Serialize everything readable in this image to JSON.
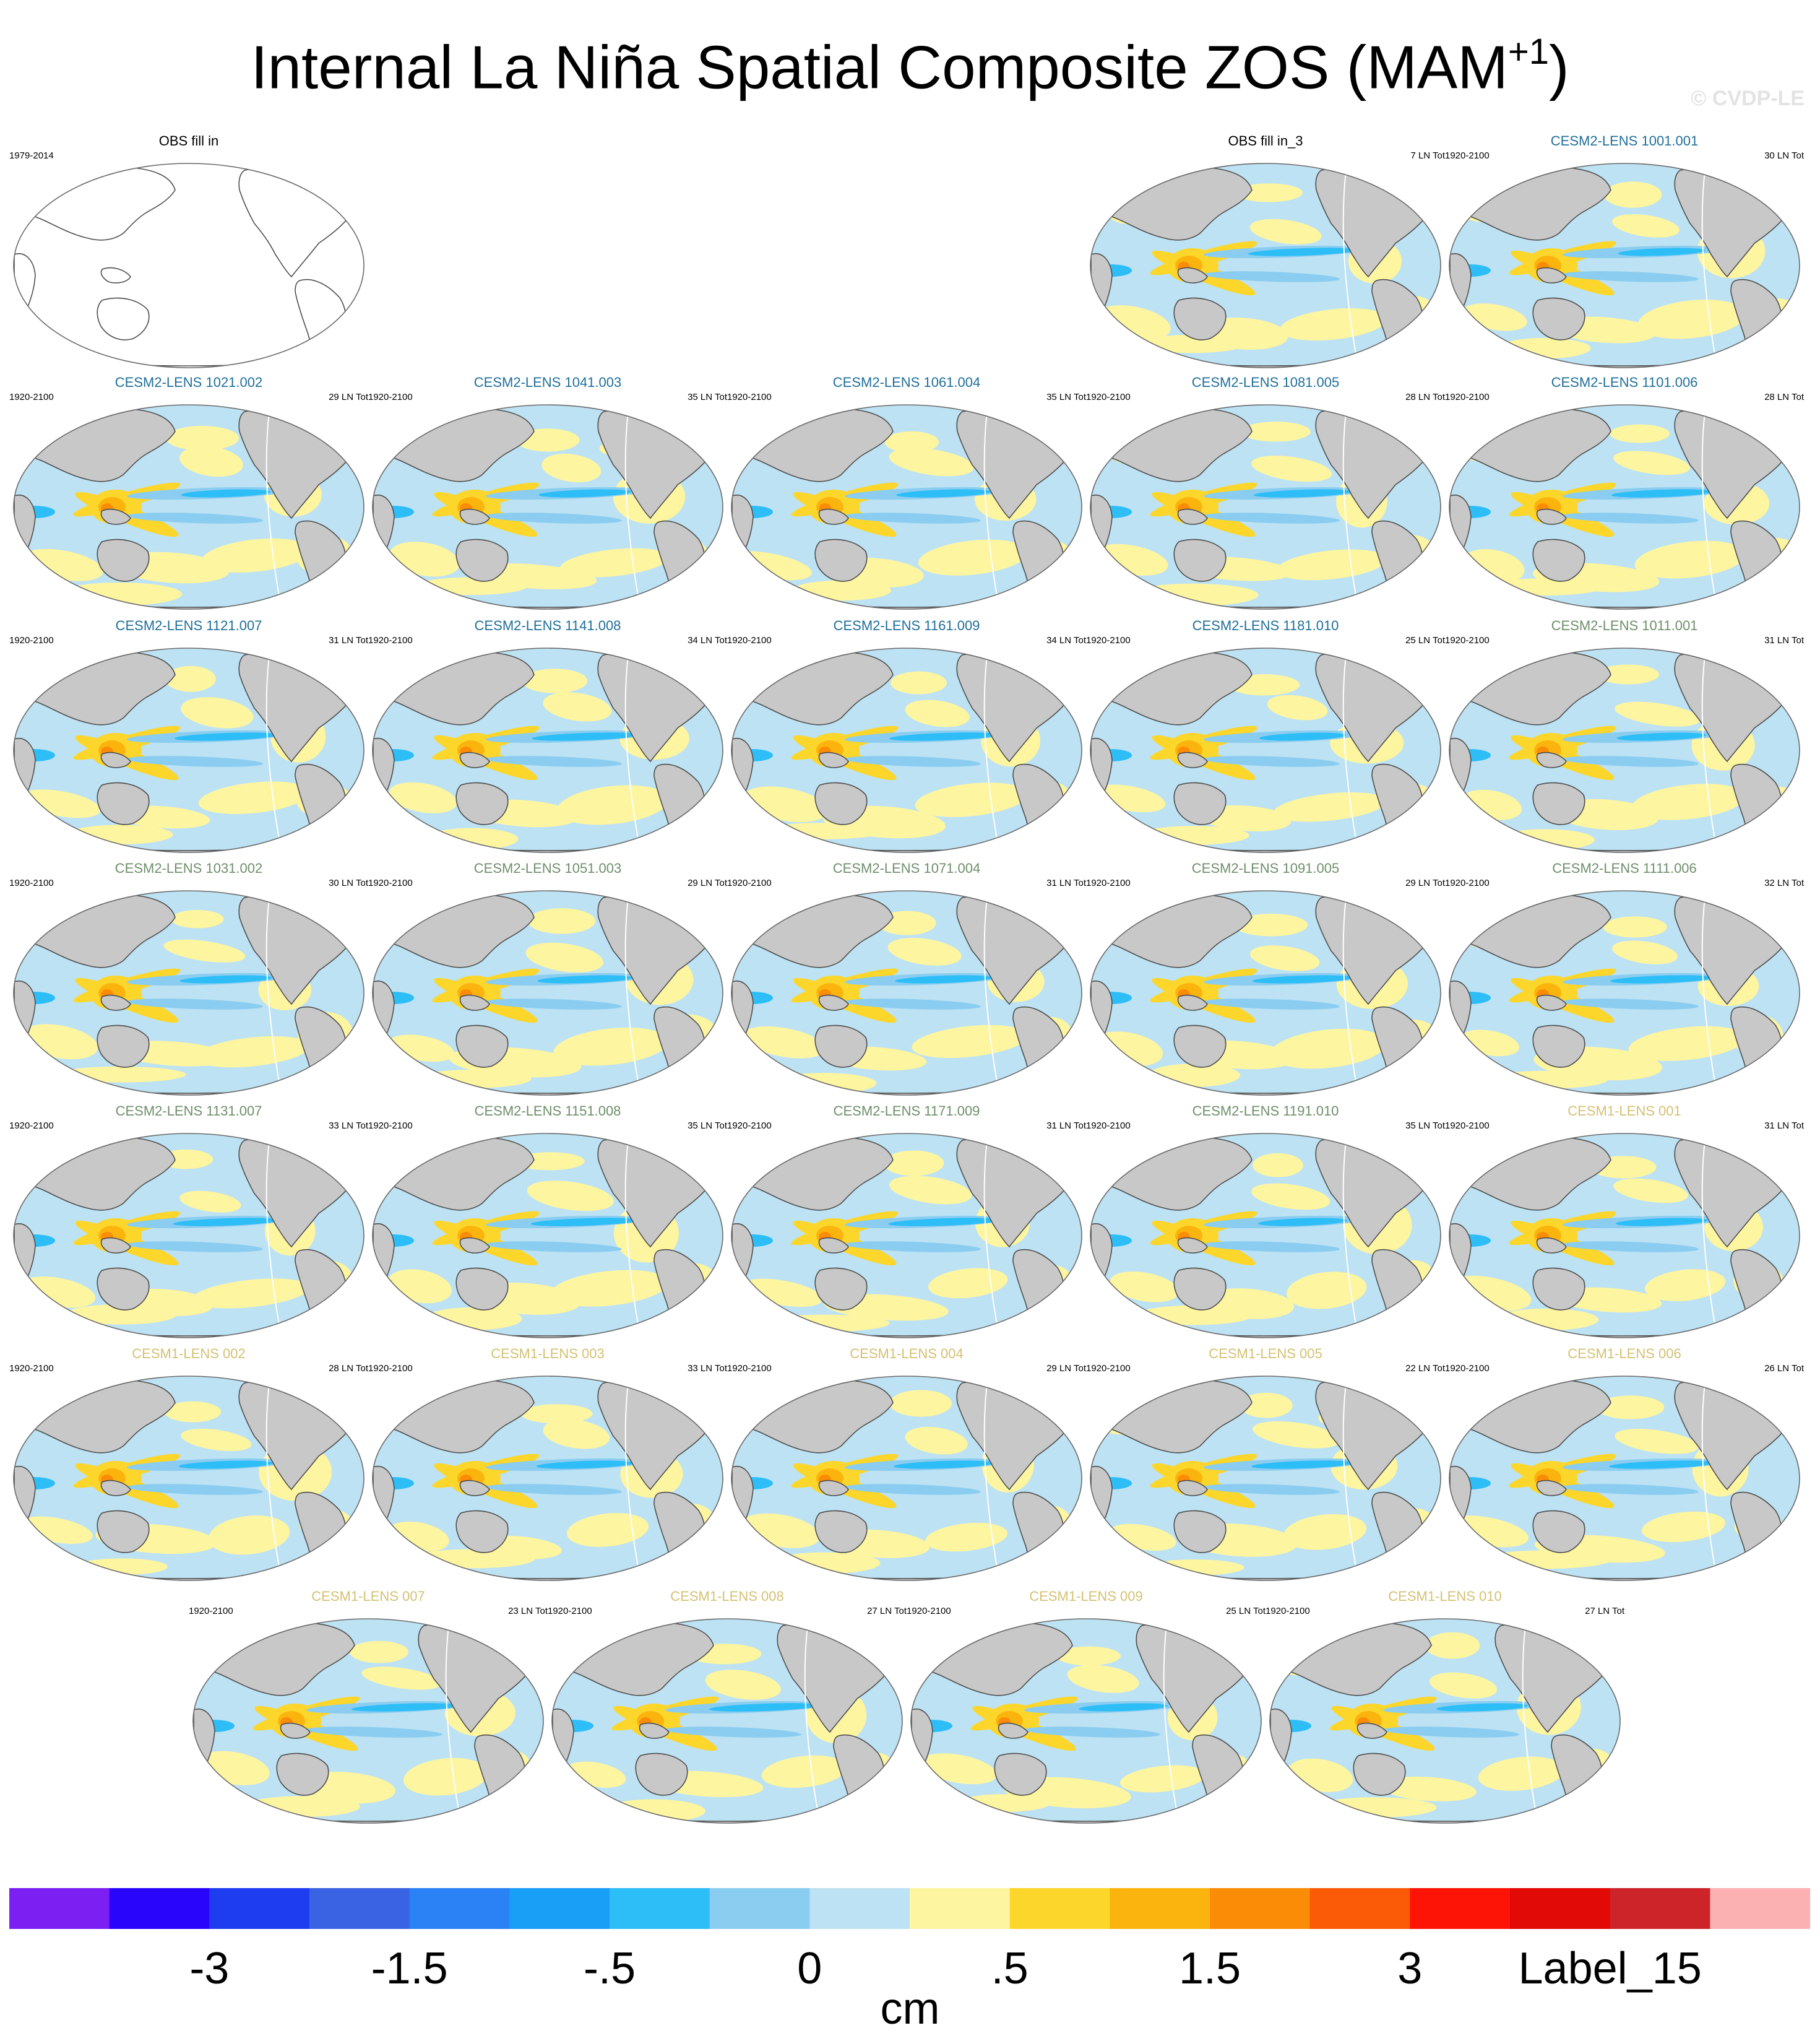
{
  "title": {
    "text": "Internal La Niña Spatial Composite ZOS (MAM",
    "superscript": "+1",
    "close": ")"
  },
  "credit": "© CVDP-LE",
  "colors": {
    "land": "#c8c8c8",
    "coast": "#4d4d4d",
    "title_cesm2_a": "#1f6f9a",
    "title_cesm2_b": "#6e8f6a",
    "title_cesm1": "#d4c173",
    "title_obs": "#000000"
  },
  "panels": [
    {
      "name": "OBS fill in",
      "period": "1979-2014",
      "count": "",
      "color": "#000000",
      "filled": false
    },
    {
      "name": "OBS fill in_3",
      "period": "",
      "count": "7 LN Tot",
      "color": "#000000",
      "filled": true,
      "pattern": 0
    },
    {
      "name": "CESM2-LENS 1001.001",
      "period": "1920-2100",
      "count": "30 LN Tot",
      "color": "#1f6f9a",
      "filled": true,
      "pattern": 1
    },
    {
      "name": "CESM2-LENS 1021.002",
      "period": "1920-2100",
      "count": "29 LN Tot",
      "color": "#1f6f9a",
      "filled": true,
      "pattern": 2
    },
    {
      "name": "CESM2-LENS 1041.003",
      "period": "1920-2100",
      "count": "35 LN Tot",
      "color": "#1f6f9a",
      "filled": true,
      "pattern": 3
    },
    {
      "name": "CESM2-LENS 1061.004",
      "period": "1920-2100",
      "count": "35 LN Tot",
      "color": "#1f6f9a",
      "filled": true,
      "pattern": 4
    },
    {
      "name": "CESM2-LENS 1081.005",
      "period": "1920-2100",
      "count": "28 LN Tot",
      "color": "#1f6f9a",
      "filled": true,
      "pattern": 5
    },
    {
      "name": "CESM2-LENS 1101.006",
      "period": "1920-2100",
      "count": "28 LN Tot",
      "color": "#1f6f9a",
      "filled": true,
      "pattern": 6
    },
    {
      "name": "CESM2-LENS 1121.007",
      "period": "1920-2100",
      "count": "31 LN Tot",
      "color": "#1f6f9a",
      "filled": true,
      "pattern": 7
    },
    {
      "name": "CESM2-LENS 1141.008",
      "period": "1920-2100",
      "count": "34 LN Tot",
      "color": "#1f6f9a",
      "filled": true,
      "pattern": 8
    },
    {
      "name": "CESM2-LENS 1161.009",
      "period": "1920-2100",
      "count": "34 LN Tot",
      "color": "#1f6f9a",
      "filled": true,
      "pattern": 9
    },
    {
      "name": "CESM2-LENS 1181.010",
      "period": "1920-2100",
      "count": "25 LN Tot",
      "color": "#1f6f9a",
      "filled": true,
      "pattern": 10
    },
    {
      "name": "CESM2-LENS 1011.001",
      "period": "1920-2100",
      "count": "31 LN Tot",
      "color": "#6e8f6a",
      "filled": true,
      "pattern": 11
    },
    {
      "name": "CESM2-LENS 1031.002",
      "period": "1920-2100",
      "count": "30 LN Tot",
      "color": "#6e8f6a",
      "filled": true,
      "pattern": 12
    },
    {
      "name": "CESM2-LENS 1051.003",
      "period": "1920-2100",
      "count": "29 LN Tot",
      "color": "#6e8f6a",
      "filled": true,
      "pattern": 13
    },
    {
      "name": "CESM2-LENS 1071.004",
      "period": "1920-2100",
      "count": "31 LN Tot",
      "color": "#6e8f6a",
      "filled": true,
      "pattern": 14
    },
    {
      "name": "CESM2-LENS 1091.005",
      "period": "1920-2100",
      "count": "29 LN Tot",
      "color": "#6e8f6a",
      "filled": true,
      "pattern": 15
    },
    {
      "name": "CESM2-LENS 1111.006",
      "period": "1920-2100",
      "count": "32 LN Tot",
      "color": "#6e8f6a",
      "filled": true,
      "pattern": 16
    },
    {
      "name": "CESM2-LENS 1131.007",
      "period": "1920-2100",
      "count": "33 LN Tot",
      "color": "#6e8f6a",
      "filled": true,
      "pattern": 17
    },
    {
      "name": "CESM2-LENS 1151.008",
      "period": "1920-2100",
      "count": "35 LN Tot",
      "color": "#6e8f6a",
      "filled": true,
      "pattern": 18
    },
    {
      "name": "CESM2-LENS 1171.009",
      "period": "1920-2100",
      "count": "31 LN Tot",
      "color": "#6e8f6a",
      "filled": true,
      "pattern": 19
    },
    {
      "name": "CESM2-LENS 1191.010",
      "period": "1920-2100",
      "count": "35 LN Tot",
      "color": "#6e8f6a",
      "filled": true,
      "pattern": 20
    },
    {
      "name": "CESM1-LENS 001",
      "period": "1920-2100",
      "count": "31 LN Tot",
      "color": "#d4c173",
      "filled": true,
      "pattern": 21
    },
    {
      "name": "CESM1-LENS 002",
      "period": "1920-2100",
      "count": "28 LN Tot",
      "color": "#d4c173",
      "filled": true,
      "pattern": 22
    },
    {
      "name": "CESM1-LENS 003",
      "period": "1920-2100",
      "count": "33 LN Tot",
      "color": "#d4c173",
      "filled": true,
      "pattern": 23
    },
    {
      "name": "CESM1-LENS 004",
      "period": "1920-2100",
      "count": "29 LN Tot",
      "color": "#d4c173",
      "filled": true,
      "pattern": 24
    },
    {
      "name": "CESM1-LENS 005",
      "period": "1920-2100",
      "count": "22 LN Tot",
      "color": "#d4c173",
      "filled": true,
      "pattern": 25
    },
    {
      "name": "CESM1-LENS 006",
      "period": "1920-2100",
      "count": "26 LN Tot",
      "color": "#d4c173",
      "filled": true,
      "pattern": 26
    },
    {
      "name": "CESM1-LENS 007",
      "period": "1920-2100",
      "count": "23 LN Tot",
      "color": "#d4c173",
      "filled": true,
      "pattern": 27
    },
    {
      "name": "CESM1-LENS 008",
      "period": "1920-2100",
      "count": "27 LN Tot",
      "color": "#d4c173",
      "filled": true,
      "pattern": 28
    },
    {
      "name": "CESM1-LENS 009",
      "period": "1920-2100",
      "count": "25 LN Tot",
      "color": "#d4c173",
      "filled": true,
      "pattern": 29
    },
    {
      "name": "CESM1-LENS 010",
      "period": "1920-2100",
      "count": "27 LN Tot",
      "color": "#d4c173",
      "filled": true,
      "pattern": 30
    }
  ],
  "colorbar": {
    "colors": [
      "#7b1ff2",
      "#2a05fb",
      "#1f3df0",
      "#3a63e4",
      "#2a82f4",
      "#199ff6",
      "#2dbdf7",
      "#8bcdf0",
      "#bde2f3",
      "#fef5a0",
      "#fcd62a",
      "#fbb40e",
      "#fb8c06",
      "#fb5a06",
      "#fd1406",
      "#e10a07",
      "#cc2429",
      "#fbb0b2"
    ],
    "labels": [
      "-3",
      "-1.5",
      "-.5",
      "0",
      ".5",
      "1.5",
      "3",
      "Label_15"
    ],
    "label_positions": [
      2,
      4,
      6,
      8,
      10,
      12,
      14,
      16
    ],
    "units": "cm"
  }
}
